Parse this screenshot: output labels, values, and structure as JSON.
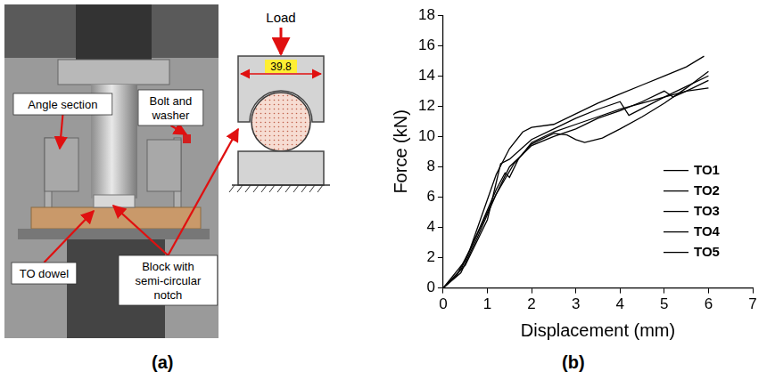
{
  "panel_a": {
    "label": "(a)",
    "callouts": [
      "Angle section",
      "Bolt and washer",
      "TO dowel",
      "Block with semi-circular notch"
    ],
    "schematic": {
      "load": "Load",
      "width": 39.8
    }
  },
  "panel_b": {
    "label": "(b)"
  },
  "chart_data": {
    "type": "line",
    "xlabel": "Displacement (mm)",
    "ylabel": "Force (kN)",
    "xlim": [
      0,
      7
    ],
    "xticks": [
      0,
      1,
      2,
      3,
      4,
      5,
      6,
      7
    ],
    "ylim": [
      0,
      18
    ],
    "yticks": [
      0,
      2,
      4,
      6,
      8,
      10,
      12,
      14,
      16,
      18
    ],
    "grid": false,
    "legend": "lower right",
    "series": [
      {
        "name": "TO1",
        "color": "#000000",
        "x": [
          0,
          0.3,
          0.6,
          0.9,
          1.2,
          1.5,
          1.8,
          2,
          2.5,
          3,
          3.5,
          4,
          4.5,
          5,
          5.5,
          5.9
        ],
        "values": [
          0,
          0.8,
          2.5,
          5,
          7.5,
          9.2,
          10.3,
          10.6,
          10.8,
          11.5,
          12.2,
          12.8,
          13.4,
          14,
          14.6,
          15.3
        ]
      },
      {
        "name": "TO2",
        "color": "#000000",
        "x": [
          0,
          0.4,
          0.8,
          1.2,
          1.6,
          2,
          2.5,
          2.8,
          3,
          3.2,
          3.6,
          4,
          4.5,
          5,
          5.5,
          6
        ],
        "values": [
          0,
          1,
          3.5,
          6.2,
          8.2,
          9.5,
          10.2,
          10.1,
          9.8,
          9.6,
          9.9,
          10.5,
          11.3,
          12.2,
          13.2,
          14.3
        ]
      },
      {
        "name": "TO3",
        "color": "#000000",
        "x": [
          0,
          0.4,
          0.8,
          1.2,
          1.4,
          1.5,
          1.7,
          2,
          2.5,
          3,
          3.5,
          4,
          4.5,
          5,
          5.5,
          6
        ],
        "values": [
          0,
          1.2,
          3.8,
          6.5,
          7.6,
          7.3,
          8.5,
          9.6,
          10.3,
          10.8,
          11.3,
          11.8,
          12.2,
          12.6,
          13,
          13.2
        ]
      },
      {
        "name": "TO4",
        "color": "#000000",
        "x": [
          0,
          0.5,
          1,
          1.3,
          1.5,
          2,
          2.5,
          3,
          3.5,
          4,
          4.2,
          4.6,
          5,
          5.5,
          6
        ],
        "values": [
          0,
          1.5,
          4.5,
          8.2,
          8.5,
          9.8,
          10.5,
          11.2,
          11.8,
          12.3,
          11.4,
          12,
          12.6,
          13.3,
          14
        ]
      },
      {
        "name": "TO5",
        "color": "#000000",
        "x": [
          0,
          0.5,
          1,
          1.5,
          2,
          2.5,
          3,
          3.5,
          4,
          4.5,
          5,
          5.2,
          5.5,
          6
        ],
        "values": [
          0,
          1.8,
          5,
          8,
          9.4,
          10,
          10.5,
          11.2,
          11.7,
          12.3,
          13,
          12.6,
          13,
          13.7
        ]
      }
    ]
  }
}
